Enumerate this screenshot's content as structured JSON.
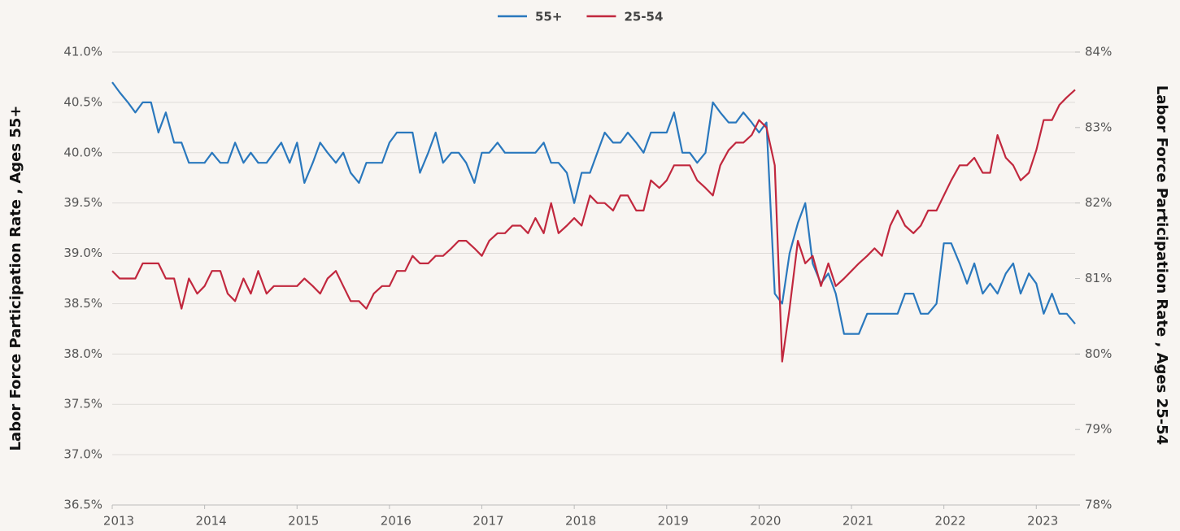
{
  "chart_data": {
    "type": "line",
    "x": [
      2013,
      2013.08,
      2013.17,
      2013.25,
      2013.33,
      2013.42,
      2013.5,
      2013.58,
      2013.67,
      2013.75,
      2013.83,
      2013.92,
      2014,
      2014.08,
      2014.17,
      2014.25,
      2014.33,
      2014.42,
      2014.5,
      2014.58,
      2014.67,
      2014.75,
      2014.83,
      2014.92,
      2015,
      2015.08,
      2015.17,
      2015.25,
      2015.33,
      2015.42,
      2015.5,
      2015.58,
      2015.67,
      2015.75,
      2015.83,
      2015.92,
      2016,
      2016.08,
      2016.17,
      2016.25,
      2016.33,
      2016.42,
      2016.5,
      2016.58,
      2016.67,
      2016.75,
      2016.83,
      2016.92,
      2017,
      2017.08,
      2017.17,
      2017.25,
      2017.33,
      2017.42,
      2017.5,
      2017.58,
      2017.67,
      2017.75,
      2017.83,
      2017.92,
      2018,
      2018.08,
      2018.17,
      2018.25,
      2018.33,
      2018.42,
      2018.5,
      2018.58,
      2018.67,
      2018.75,
      2018.83,
      2018.92,
      2019,
      2019.08,
      2019.17,
      2019.25,
      2019.33,
      2019.42,
      2019.5,
      2019.58,
      2019.67,
      2019.75,
      2019.83,
      2019.92,
      2020,
      2020.08,
      2020.17,
      2020.25,
      2020.33,
      2020.42,
      2020.5,
      2020.58,
      2020.67,
      2020.75,
      2020.83,
      2020.92,
      2021,
      2021.08,
      2021.17,
      2021.25,
      2021.33,
      2021.42,
      2021.5,
      2021.58,
      2021.67,
      2021.75,
      2021.83,
      2021.92,
      2022,
      2022.08,
      2022.17,
      2022.25,
      2022.33,
      2022.42,
      2022.5,
      2022.58,
      2022.67,
      2022.75,
      2022.83,
      2022.92,
      2023,
      2023.08,
      2023.17,
      2023.25,
      2023.33,
      2023.42
    ],
    "series": [
      {
        "name": "55+",
        "color": "#2a78bd",
        "axis": "y",
        "values": [
          40.7,
          40.6,
          40.5,
          40.4,
          40.5,
          40.5,
          40.2,
          40.4,
          40.1,
          40.1,
          39.9,
          39.9,
          39.9,
          40.0,
          39.9,
          39.9,
          40.1,
          39.9,
          40.0,
          39.9,
          39.9,
          40.0,
          40.1,
          39.9,
          40.1,
          39.7,
          39.9,
          40.1,
          40.0,
          39.9,
          40.0,
          39.8,
          39.7,
          39.9,
          39.9,
          39.9,
          40.1,
          40.2,
          40.2,
          40.2,
          39.8,
          40.0,
          40.2,
          39.9,
          40.0,
          40.0,
          39.9,
          39.7,
          40.0,
          40.0,
          40.1,
          40.0,
          40.0,
          40.0,
          40.0,
          40.0,
          40.1,
          39.9,
          39.9,
          39.8,
          39.5,
          39.8,
          39.8,
          40.0,
          40.2,
          40.1,
          40.1,
          40.2,
          40.1,
          40.0,
          40.2,
          40.2,
          40.2,
          40.4,
          40.0,
          40.0,
          39.9,
          40.0,
          40.5,
          40.4,
          40.3,
          40.3,
          40.4,
          40.3,
          40.2,
          40.3,
          38.6,
          38.5,
          39.0,
          39.3,
          39.5,
          38.9,
          38.7,
          38.8,
          38.6,
          38.2,
          38.2,
          38.2,
          38.4,
          38.4,
          38.4,
          38.4,
          38.4,
          38.6,
          38.6,
          38.4,
          38.4,
          38.5,
          39.1,
          39.1,
          38.9,
          38.7,
          38.9,
          38.6,
          38.7,
          38.6,
          38.8,
          38.9,
          38.6,
          38.8,
          38.7,
          38.4,
          38.6,
          38.4,
          38.4,
          38.3
        ]
      },
      {
        "name": "25-54",
        "color": "#c1283e",
        "axis": "y2",
        "values": [
          81.1,
          81.0,
          81.0,
          81.0,
          81.2,
          81.2,
          81.2,
          81.0,
          81.0,
          80.6,
          81.0,
          80.8,
          80.9,
          81.1,
          81.1,
          80.8,
          80.7,
          81.0,
          80.8,
          81.1,
          80.8,
          80.9,
          80.9,
          80.9,
          80.9,
          81.0,
          80.9,
          80.8,
          81.0,
          81.1,
          80.9,
          80.7,
          80.7,
          80.6,
          80.8,
          80.9,
          80.9,
          81.1,
          81.1,
          81.3,
          81.2,
          81.2,
          81.3,
          81.3,
          81.4,
          81.5,
          81.5,
          81.4,
          81.3,
          81.5,
          81.6,
          81.6,
          81.7,
          81.7,
          81.6,
          81.8,
          81.6,
          82.0,
          81.6,
          81.7,
          81.8,
          81.7,
          82.1,
          82.0,
          82.0,
          81.9,
          82.1,
          82.1,
          81.9,
          81.9,
          82.3,
          82.2,
          82.3,
          82.5,
          82.5,
          82.5,
          82.3,
          82.2,
          82.1,
          82.5,
          82.7,
          82.8,
          82.8,
          82.9,
          83.1,
          83.0,
          82.5,
          79.9,
          80.6,
          81.5,
          81.2,
          81.3,
          80.9,
          81.2,
          80.9,
          81.0,
          81.1,
          81.2,
          81.3,
          81.4,
          81.3,
          81.7,
          81.9,
          81.7,
          81.6,
          81.7,
          81.9,
          81.9,
          82.1,
          82.3,
          82.5,
          82.5,
          82.6,
          82.4,
          82.4,
          82.9,
          82.6,
          82.5,
          82.3,
          82.4,
          82.7,
          83.1,
          83.1,
          83.3,
          83.4,
          83.5
        ]
      }
    ],
    "xlim": [
      2013,
      2023.42
    ],
    "xticks": [
      2013,
      2014,
      2015,
      2016,
      2017,
      2018,
      2019,
      2020,
      2021,
      2022,
      2023
    ],
    "ylim": [
      36.5,
      41.0
    ],
    "yticks": [
      {
        "value": 36.5,
        "label": "36.5%"
      },
      {
        "value": 37.0,
        "label": "37.0%"
      },
      {
        "value": 37.5,
        "label": "37.5%"
      },
      {
        "value": 38.0,
        "label": "38.0%"
      },
      {
        "value": 38.5,
        "label": "38.5%"
      },
      {
        "value": 39.0,
        "label": "39.0%"
      },
      {
        "value": 39.5,
        "label": "39.5%"
      },
      {
        "value": 40.0,
        "label": "40.0%"
      },
      {
        "value": 40.5,
        "label": "40.5%"
      },
      {
        "value": 41.0,
        "label": "41.0%"
      }
    ],
    "y2lim": [
      78,
      84
    ],
    "y2ticks": [
      {
        "value": 78,
        "label": "78%"
      },
      {
        "value": 79,
        "label": "79%"
      },
      {
        "value": 80,
        "label": "80%"
      },
      {
        "value": 81,
        "label": "81%"
      },
      {
        "value": 82,
        "label": "82%"
      },
      {
        "value": 83,
        "label": "83%"
      },
      {
        "value": 84,
        "label": "84%"
      }
    ],
    "ylabel": "Labor Force Participation Rate , Ages 55+",
    "y2label": "Labor Force Participation Rate , Ages 25-54",
    "grid": true,
    "legend": "top"
  }
}
